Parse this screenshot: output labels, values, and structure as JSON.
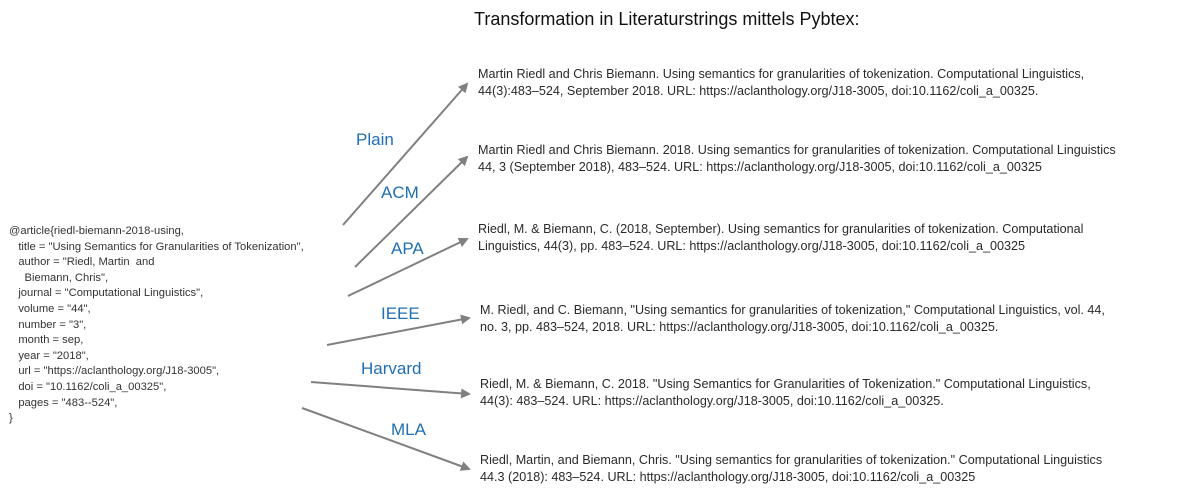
{
  "title": "Transformation in Literaturstrings mittels Pybtex:",
  "bibtex": "@article{riedl-biemann-2018-using,\n   title = \"Using Semantics for Granularities of Tokenization\",\n   author = \"Riedl, Martin  and\n     Biemann, Chris\",\n   journal = \"Computational Linguistics\",\n   volume = \"44\",\n   number = \"3\",\n   month = sep,\n   year = \"2018\",\n   url = \"https://aclanthology.org/J18-3005\",\n   doi = \"10.1162/coli_a_00325\",\n   pages = \"483--524\",\n}",
  "colors": {
    "label": "#1f6fb5",
    "arrow": "#808080"
  },
  "styles": [
    {
      "label": "Plain",
      "lines": [
        "Martin Riedl and Chris Biemann. Using semantics for granularities of tokenization. Computational Linguistics,",
        "44(3):483–524, September 2018. URL: https://aclanthology.org/J18-3005, doi:10.1162/coli_a_00325."
      ]
    },
    {
      "label": "ACM",
      "lines": [
        "Martin Riedl and Chris Biemann. 2018. Using semantics for granularities of tokenization. Computational Linguistics",
        "44, 3 (September 2018), 483–524. URL: https://aclanthology.org/J18-3005, doi:10.1162/coli_a_00325"
      ]
    },
    {
      "label": "APA",
      "lines": [
        "Riedl, M. & Biemann, C. (2018, September). Using semantics for granularities of tokenization. Computational",
        "Linguistics, 44(3), pp. 483–524. URL: https://aclanthology.org/J18-3005, doi:10.1162/coli_a_00325"
      ]
    },
    {
      "label": "IEEE",
      "lines": [
        "M. Riedl, and C. Biemann, \"Using semantics for granularities of tokenization,\" Computational Linguistics, vol. 44,",
        "no. 3, pp. 483–524, 2018. URL: https://aclanthology.org/J18-3005, doi:10.1162/coli_a_00325."
      ]
    },
    {
      "label": "Harvard",
      "lines": [
        "Riedl, M. & Biemann, C. 2018. \"Using Semantics for Granularities of Tokenization.\" Computational Linguistics,",
        "44(3): 483–524. URL: https://aclanthology.org/J18-3005, doi:10.1162/coli_a_00325."
      ]
    },
    {
      "label": "MLA",
      "lines": [
        "Riedl, Martin, and Biemann, Chris. \"Using semantics for granularities of tokenization.\" Computational Linguistics",
        "44.3 (2018): 483–524. URL: https://aclanthology.org/J18-3005, doi:10.1162/coli_a_00325"
      ]
    }
  ]
}
